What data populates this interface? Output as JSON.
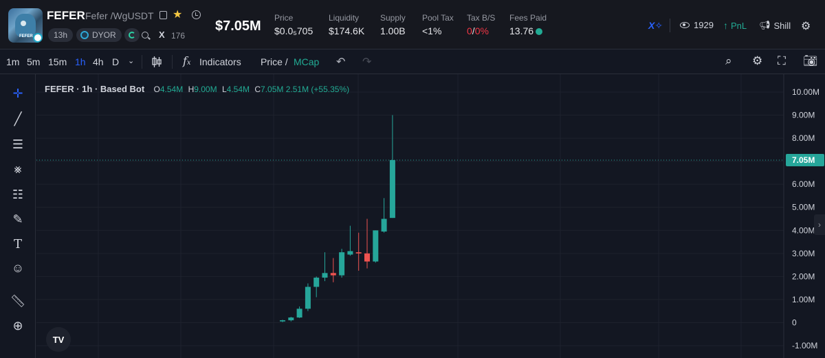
{
  "token": {
    "symbol": "FEFER",
    "name_pair": "Fefer /WgUSDT",
    "age": "13h",
    "dyor": "DYOR",
    "x_count": "176",
    "x_label": "X"
  },
  "header": {
    "market_cap": "$7.05M",
    "stats": [
      {
        "label": "Price",
        "value": "$0.0₅705"
      },
      {
        "label": "Liquidity",
        "value": "$174.6K"
      },
      {
        "label": "Supply",
        "value": "1.00B"
      },
      {
        "label": "Pool Tax",
        "value": "<1%"
      }
    ],
    "tax": {
      "label": "Tax B/S",
      "buy": "0",
      "sep": "/",
      "sell": "0%"
    },
    "fees": {
      "label": "Fees Paid",
      "value": "13.76"
    },
    "views": "1929",
    "pnl_label": "PnL",
    "shill_label": "Shill"
  },
  "toolbar": {
    "timeframes": [
      "1m",
      "5m",
      "15m",
      "1h",
      "4h",
      "D"
    ],
    "active_timeframe": "1h",
    "indicators_label": "Indicators",
    "price_label": "Price /",
    "mcap_label": "MCap"
  },
  "legend": {
    "title": "FEFER · 1h · Based Bot",
    "o_key": "O",
    "o": "4.54M",
    "h_key": "H",
    "h": "9.00M",
    "l_key": "L",
    "l": "4.54M",
    "c_key": "C",
    "c": "7.05M",
    "change": "2.51M (+55.35%)"
  },
  "colors": {
    "up": "#26a69a",
    "down": "#ef5350",
    "accent": "#2962ff",
    "background": "#131722"
  },
  "chart_data": {
    "type": "candlestick",
    "y_unit": "market cap (USD)",
    "ylim": [
      -1.0,
      10.0
    ],
    "y_ticks": [
      "10.00M",
      "9.00M",
      "8.00M",
      "7.00M",
      "6.00M",
      "5.00M",
      "4.00M",
      "3.00M",
      "2.00M",
      "1.00M",
      "0",
      "-1.00M"
    ],
    "last_value_label": "7.05M",
    "last_value": 7.05,
    "candles": [
      {
        "o": 0.05,
        "h": 0.12,
        "l": 0.02,
        "c": 0.1
      },
      {
        "o": 0.1,
        "h": 0.25,
        "l": 0.05,
        "c": 0.22
      },
      {
        "o": 0.22,
        "h": 0.7,
        "l": 0.2,
        "c": 0.6
      },
      {
        "o": 0.6,
        "h": 1.7,
        "l": 0.5,
        "c": 1.55
      },
      {
        "o": 1.55,
        "h": 2.0,
        "l": 1.1,
        "c": 1.95
      },
      {
        "o": 1.95,
        "h": 3.05,
        "l": 1.8,
        "c": 2.15
      },
      {
        "o": 2.15,
        "h": 2.8,
        "l": 1.75,
        "c": 2.05
      },
      {
        "o": 2.05,
        "h": 3.2,
        "l": 1.95,
        "c": 3.05
      },
      {
        "o": 2.95,
        "h": 4.2,
        "l": 2.9,
        "c": 3.1
      },
      {
        "o": 3.05,
        "h": 3.9,
        "l": 2.25,
        "c": 3.0
      },
      {
        "o": 3.0,
        "h": 4.5,
        "l": 2.35,
        "c": 2.65
      },
      {
        "o": 2.65,
        "h": 4.0,
        "l": 2.6,
        "c": 4.0
      },
      {
        "o": 3.95,
        "h": 5.4,
        "l": 3.9,
        "c": 4.5
      },
      {
        "o": 4.54,
        "h": 9.0,
        "l": 4.54,
        "c": 7.05
      }
    ]
  }
}
